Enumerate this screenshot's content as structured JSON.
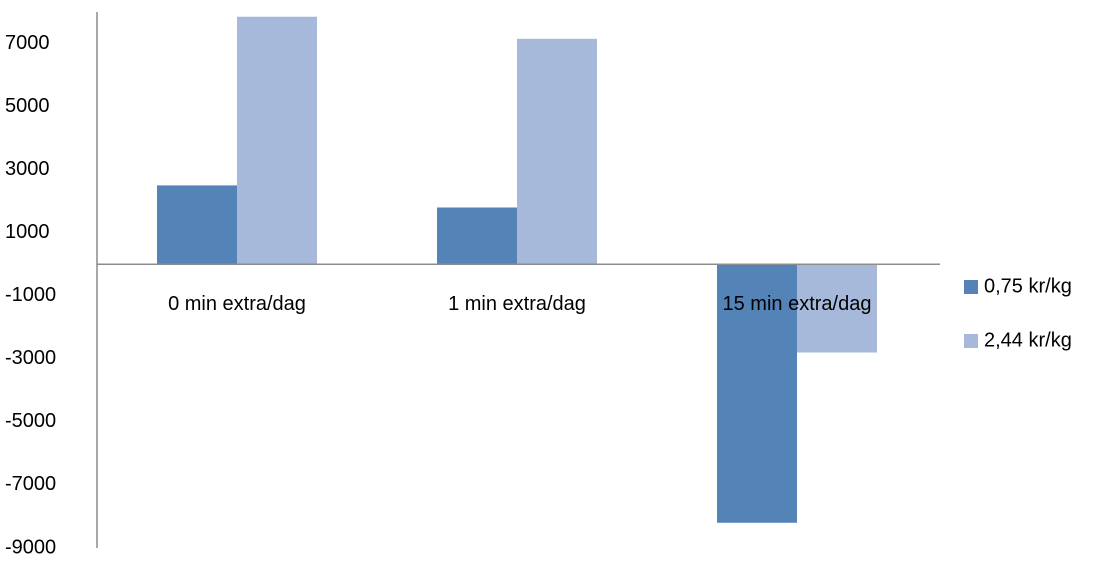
{
  "chart_data": {
    "type": "bar",
    "categories": [
      "0 min extra/dag",
      "1 min extra/dag",
      "15 min extra/dag"
    ],
    "series": [
      {
        "name": "0,75 kr/kg",
        "color": "#5483B8",
        "values": [
          2500,
          1800,
          -8200
        ]
      },
      {
        "name": "2,44 kr/kg",
        "color": "#A6B9DA",
        "values": [
          7850,
          7150,
          -2800
        ]
      }
    ],
    "yticks": [
      "7000",
      "5000",
      "3000",
      "1000",
      "-1000",
      "-3000",
      "-5000",
      "-7000",
      "-9000"
    ],
    "ylim": [
      -9000,
      8000
    ],
    "title": "",
    "xlabel": "",
    "ylabel": "",
    "legend_position": "right",
    "grid": false
  }
}
